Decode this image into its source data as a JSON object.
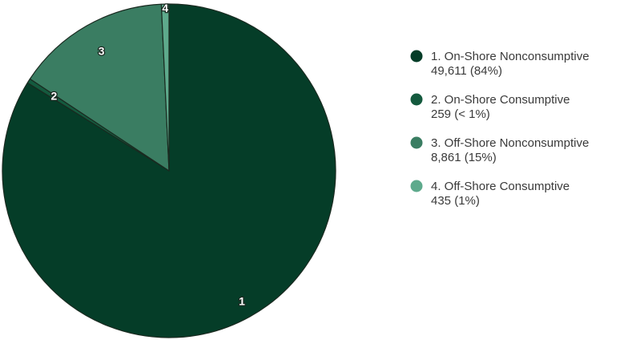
{
  "chart_data": {
    "type": "pie",
    "slices": [
      {
        "id": "1",
        "label": "1. On-Shore Nonconsumptive",
        "detail": "49,611 (84%)",
        "value": 49611,
        "color": "#053d28"
      },
      {
        "id": "2",
        "label": "2. On-Shore Consumptive",
        "detail": "259 (< 1%)",
        "value": 259,
        "color": "#145a3e"
      },
      {
        "id": "3",
        "label": "3. Off-Shore Nonconsumptive",
        "detail": "8,861 (15%)",
        "value": 8861,
        "color": "#3a7d62"
      },
      {
        "id": "4",
        "label": "4. Off-Shore Consumptive",
        "detail": "435 (1%)",
        "value": 435,
        "color": "#5eaa8c"
      }
    ],
    "start_angle": "12 o'clock",
    "direction": "clockwise",
    "legend_position": "right"
  }
}
